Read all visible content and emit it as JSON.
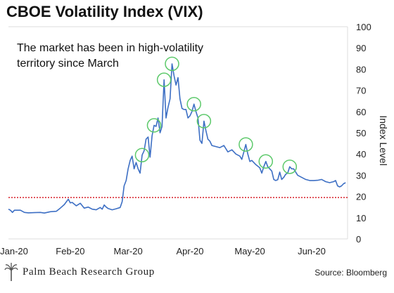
{
  "title": "CBOE Volatility Index (VIX)",
  "source": "Source: Bloomberg",
  "brand": "Palm Beach Research Group",
  "colors": {
    "line": "#3d6fc4",
    "circle": "#5cc96a",
    "reference": "#d8202a"
  },
  "chart_data": {
    "type": "line",
    "annotation": [
      "The market has been in high-volatility",
      "territory since March"
    ],
    "ylabel": "Index Level",
    "ylim": [
      0,
      100
    ],
    "yticks": [
      "0",
      "10",
      "20",
      "30",
      "40",
      "50",
      "60",
      "70",
      "80",
      "90",
      "100"
    ],
    "xlim": [
      0,
      170
    ],
    "xticks": [
      {
        "x": 0,
        "label": "Jan-20"
      },
      {
        "x": 31,
        "label": "Feb-20"
      },
      {
        "x": 60,
        "label": "Mar-20"
      },
      {
        "x": 91,
        "label": "Apr-20"
      },
      {
        "x": 121,
        "label": "May-20"
      },
      {
        "x": 152,
        "label": "Jun-20"
      }
    ],
    "reference_line": 19.5,
    "highlighted_points": [
      {
        "x": 67,
        "y": 39.5
      },
      {
        "x": 73,
        "y": 53.5
      },
      {
        "x": 78,
        "y": 75
      },
      {
        "x": 82,
        "y": 82.5
      },
      {
        "x": 93,
        "y": 63.5
      },
      {
        "x": 98,
        "y": 55.5
      },
      {
        "x": 119,
        "y": 44.5
      },
      {
        "x": 129,
        "y": 36.5
      },
      {
        "x": 141,
        "y": 34
      }
    ],
    "series": [
      {
        "points": [
          [
            0,
            14
          ],
          [
            1,
            13.5
          ],
          [
            2,
            12.5
          ],
          [
            3,
            13.5
          ],
          [
            4,
            13.5
          ],
          [
            6,
            13.5
          ],
          [
            8,
            12.5
          ],
          [
            10,
            12.3
          ],
          [
            13,
            12.4
          ],
          [
            16,
            12.5
          ],
          [
            18,
            12.2
          ],
          [
            21,
            12.8
          ],
          [
            24,
            13
          ],
          [
            26,
            14.5
          ],
          [
            28,
            16.2
          ],
          [
            30,
            18.7
          ],
          [
            31,
            17
          ],
          [
            32,
            17.2
          ],
          [
            34,
            15.6
          ],
          [
            36,
            16.8
          ],
          [
            38,
            14.5
          ],
          [
            40,
            15
          ],
          [
            42,
            14
          ],
          [
            44,
            13.7
          ],
          [
            46,
            14.8
          ],
          [
            47,
            14
          ],
          [
            48,
            16
          ],
          [
            49,
            15
          ],
          [
            50,
            14.3
          ],
          [
            52,
            13.7
          ],
          [
            54,
            14.2
          ],
          [
            56,
            14.8
          ],
          [
            57,
            17.5
          ],
          [
            58,
            25
          ],
          [
            59,
            27.5
          ],
          [
            60,
            33
          ],
          [
            61,
            37
          ],
          [
            62,
            39
          ],
          [
            63,
            33
          ],
          [
            64,
            36
          ],
          [
            65,
            33
          ],
          [
            66,
            31
          ],
          [
            67,
            39.5
          ],
          [
            68,
            41.5
          ],
          [
            69,
            47
          ],
          [
            70,
            48
          ],
          [
            71,
            38.5
          ],
          [
            72,
            48.5
          ],
          [
            73,
            53.5
          ],
          [
            74,
            53
          ],
          [
            75,
            57
          ],
          [
            76,
            50
          ],
          [
            77,
            53
          ],
          [
            78,
            75
          ],
          [
            79,
            57
          ],
          [
            80,
            62
          ],
          [
            81,
            66
          ],
          [
            82,
            82.5
          ],
          [
            83,
            77
          ],
          [
            84,
            72.5
          ],
          [
            85,
            76
          ],
          [
            86,
            66
          ],
          [
            87,
            61.5
          ],
          [
            88,
            61
          ],
          [
            89,
            61
          ],
          [
            90,
            57
          ],
          [
            91,
            58
          ],
          [
            92,
            60
          ],
          [
            93,
            63.5
          ],
          [
            94,
            60
          ],
          [
            95,
            57
          ],
          [
            96,
            46.5
          ],
          [
            97,
            45
          ],
          [
            98,
            55.5
          ],
          [
            99,
            51
          ],
          [
            100,
            47
          ],
          [
            101,
            46
          ],
          [
            102,
            44
          ],
          [
            104,
            43.5
          ],
          [
            106,
            43
          ],
          [
            108,
            44
          ],
          [
            110,
            41
          ],
          [
            112,
            42
          ],
          [
            114,
            40
          ],
          [
            116,
            39
          ],
          [
            117,
            37.5
          ],
          [
            118,
            41
          ],
          [
            119,
            44.5
          ],
          [
            120,
            40
          ],
          [
            121,
            36.5
          ],
          [
            122,
            37
          ],
          [
            124,
            35
          ],
          [
            126,
            33.5
          ],
          [
            127,
            31
          ],
          [
            128,
            34
          ],
          [
            129,
            36.5
          ],
          [
            130,
            34
          ],
          [
            131,
            33
          ],
          [
            132,
            32
          ],
          [
            133,
            28
          ],
          [
            134,
            27.5
          ],
          [
            135,
            27.9
          ],
          [
            136,
            31.5
          ],
          [
            137,
            28
          ],
          [
            138,
            29
          ],
          [
            139,
            30.5
          ],
          [
            140,
            31
          ],
          [
            141,
            34
          ],
          [
            142,
            33
          ],
          [
            143,
            33
          ],
          [
            145,
            30
          ],
          [
            147,
            29
          ],
          [
            149,
            28
          ],
          [
            151,
            27.5
          ],
          [
            153,
            27.5
          ],
          [
            155,
            27.6
          ],
          [
            157,
            28
          ],
          [
            158,
            27.5
          ],
          [
            159,
            27
          ],
          [
            161,
            26.5
          ],
          [
            163,
            27
          ],
          [
            164,
            27.5
          ],
          [
            165,
            25
          ],
          [
            166,
            24.5
          ],
          [
            167,
            25
          ],
          [
            168,
            26
          ],
          [
            169,
            26.5
          ]
        ]
      }
    ]
  }
}
